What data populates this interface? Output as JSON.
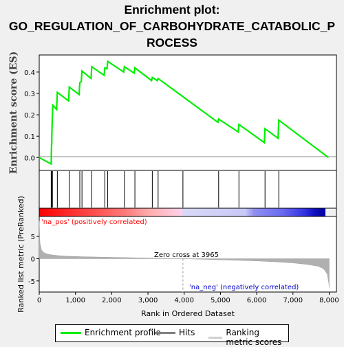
{
  "title_lines": [
    "Enrichment plot:",
    "GO_REGULATION_OF_CARBOHYDRATE_CATABOLIC_P",
    "ROCESS"
  ],
  "colors": {
    "es_line": "#00ee00",
    "hits": "#000000",
    "metric_fill": "#b0b0b0",
    "pos_text": "#ff0000",
    "neg_text": "#0000cc"
  },
  "chart_data": [
    {
      "type": "line",
      "name": "enrichment-profile",
      "ylabel": "Enrichment score (ES)",
      "yticks": [
        0.0,
        0.1,
        0.2,
        0.3,
        0.4
      ],
      "ylim": [
        -0.06,
        0.48
      ],
      "xlim": [
        0,
        8200
      ],
      "x": [
        0,
        330,
        340,
        345,
        350,
        355,
        365,
        375,
        480,
        500,
        810,
        830,
        1100,
        1120,
        1160,
        1180,
        1430,
        1450,
        1790,
        1810,
        1870,
        1890,
        2330,
        2350,
        2620,
        2640,
        3100,
        3120,
        3260,
        3280,
        4930,
        4950,
        5490,
        5510,
        6210,
        6230,
        6590,
        6610,
        7980
      ],
      "y": [
        0.0,
        -0.03,
        0.06,
        0.06,
        0.11,
        0.15,
        0.2,
        0.245,
        0.225,
        0.305,
        0.265,
        0.33,
        0.295,
        0.35,
        0.355,
        0.405,
        0.37,
        0.425,
        0.385,
        0.42,
        0.415,
        0.45,
        0.4,
        0.425,
        0.395,
        0.42,
        0.36,
        0.375,
        0.36,
        0.37,
        0.165,
        0.18,
        0.12,
        0.155,
        0.07,
        0.135,
        0.09,
        0.175,
        0.0
      ]
    },
    {
      "type": "hits",
      "name": "hits",
      "x": [
        330,
        345,
        365,
        500,
        830,
        1120,
        1180,
        1450,
        1810,
        1890,
        2350,
        2640,
        3120,
        3280,
        3965,
        4950,
        5510,
        6230,
        6610
      ]
    },
    {
      "type": "area",
      "name": "ranking-metric",
      "ylabel": "Ranked list metric (PreRanked)",
      "xlabel": "Rank in Ordered Dataset",
      "xticks": [
        0,
        1000,
        2000,
        3000,
        4000,
        5000,
        6000,
        7000,
        8000
      ],
      "yticks": [
        -5,
        0,
        5
      ],
      "ylim": [
        -7.5,
        9.5
      ],
      "x": [
        0,
        20,
        60,
        120,
        200,
        300,
        500,
        800,
        1200,
        2000,
        3000,
        3965,
        5000,
        6000,
        6600,
        7000,
        7400,
        7700,
        7850,
        7950,
        7990,
        8000
      ],
      "y": [
        8.5,
        3.5,
        2.0,
        1.4,
        1.1,
        0.9,
        0.7,
        0.55,
        0.45,
        0.3,
        0.15,
        0.0,
        -0.25,
        -0.5,
        -0.75,
        -0.95,
        -1.3,
        -1.7,
        -2.3,
        -3.5,
        -5.5,
        -6.5
      ],
      "annotations": {
        "zero_cross": "Zero cross at 3965",
        "pos": "'na_pos' (positively correlated)",
        "neg": "'na_neg' (negatively correlated)"
      }
    }
  ],
  "legend": {
    "enrichment": "Enrichment profile",
    "hits": "Hits",
    "ranking": "Ranking metric scores"
  }
}
